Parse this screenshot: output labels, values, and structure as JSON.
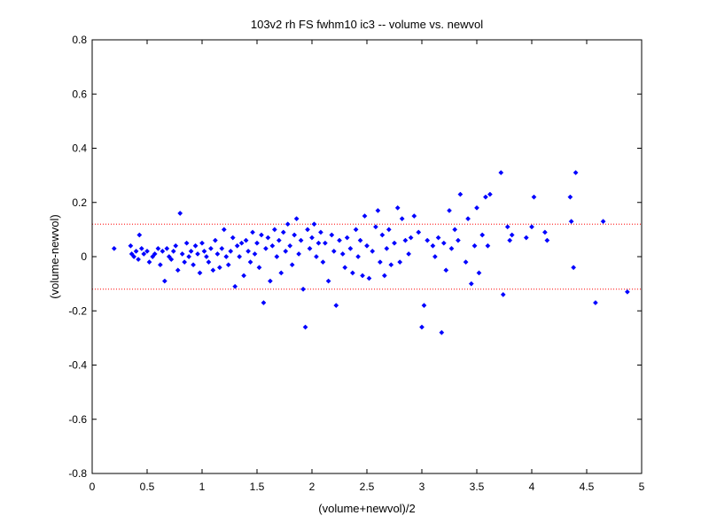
{
  "colors": {
    "background": "#ffffff",
    "axes": "#000000",
    "points": "#0000ff",
    "limits": "#ff0000"
  },
  "chart_data": {
    "type": "scatter",
    "title": "103v2 rh FS fwhm10 ic3 -- volume vs. newvol",
    "xlabel": "(volume+newvol)/2",
    "ylabel": "(volume-newvol)",
    "xlim": [
      0,
      5
    ],
    "ylim": [
      -0.8,
      0.8
    ],
    "xticks": [
      "0",
      "0.5",
      "1",
      "1.5",
      "2",
      "2.5",
      "3",
      "3.5",
      "4",
      "4.5",
      "5"
    ],
    "yticks": [
      "-0.8",
      "-0.6",
      "-0.4",
      "-0.2",
      "0",
      "0.2",
      "0.4",
      "0.6",
      "0.8"
    ],
    "marker": "diamond",
    "grid": false,
    "reference_lines": [
      {
        "y": 0.12,
        "style": "dotted",
        "color": "#ff0000"
      },
      {
        "y": -0.12,
        "style": "dotted",
        "color": "#ff0000"
      }
    ],
    "points": [
      [
        0.2,
        0.03
      ],
      [
        0.35,
        0.04
      ],
      [
        0.36,
        0.01
      ],
      [
        0.38,
        0.0
      ],
      [
        0.4,
        0.02
      ],
      [
        0.42,
        -0.01
      ],
      [
        0.43,
        0.08
      ],
      [
        0.45,
        0.03
      ],
      [
        0.47,
        0.01
      ],
      [
        0.5,
        0.02
      ],
      [
        0.52,
        -0.02
      ],
      [
        0.55,
        0.0
      ],
      [
        0.57,
        0.01
      ],
      [
        0.6,
        0.03
      ],
      [
        0.62,
        -0.03
      ],
      [
        0.64,
        0.02
      ],
      [
        0.66,
        -0.09
      ],
      [
        0.68,
        0.03
      ],
      [
        0.7,
        0.0
      ],
      [
        0.72,
        -0.01
      ],
      [
        0.74,
        0.02
      ],
      [
        0.76,
        0.04
      ],
      [
        0.78,
        -0.05
      ],
      [
        0.8,
        0.16
      ],
      [
        0.82,
        0.01
      ],
      [
        0.84,
        -0.02
      ],
      [
        0.86,
        0.05
      ],
      [
        0.88,
        0.0
      ],
      [
        0.9,
        0.02
      ],
      [
        0.92,
        -0.03
      ],
      [
        0.94,
        0.04
      ],
      [
        0.96,
        0.01
      ],
      [
        0.98,
        -0.06
      ],
      [
        1.0,
        0.05
      ],
      [
        1.02,
        0.02
      ],
      [
        1.04,
        0.0
      ],
      [
        1.06,
        -0.02
      ],
      [
        1.08,
        0.03
      ],
      [
        1.1,
        -0.05
      ],
      [
        1.12,
        0.06
      ],
      [
        1.14,
        0.01
      ],
      [
        1.16,
        -0.04
      ],
      [
        1.18,
        0.03
      ],
      [
        1.2,
        0.1
      ],
      [
        1.22,
        0.0
      ],
      [
        1.24,
        -0.03
      ],
      [
        1.26,
        0.02
      ],
      [
        1.28,
        0.07
      ],
      [
        1.3,
        -0.11
      ],
      [
        1.32,
        0.04
      ],
      [
        1.34,
        0.0
      ],
      [
        1.36,
        0.05
      ],
      [
        1.38,
        -0.07
      ],
      [
        1.4,
        0.06
      ],
      [
        1.42,
        0.02
      ],
      [
        1.44,
        -0.02
      ],
      [
        1.46,
        0.09
      ],
      [
        1.48,
        0.01
      ],
      [
        1.5,
        0.05
      ],
      [
        1.52,
        -0.04
      ],
      [
        1.54,
        0.08
      ],
      [
        1.56,
        -0.17
      ],
      [
        1.58,
        0.03
      ],
      [
        1.6,
        0.07
      ],
      [
        1.62,
        -0.09
      ],
      [
        1.64,
        0.04
      ],
      [
        1.66,
        0.1
      ],
      [
        1.68,
        0.0
      ],
      [
        1.7,
        0.06
      ],
      [
        1.72,
        -0.06
      ],
      [
        1.74,
        0.09
      ],
      [
        1.76,
        0.02
      ],
      [
        1.78,
        0.12
      ],
      [
        1.8,
        0.04
      ],
      [
        1.82,
        -0.03
      ],
      [
        1.84,
        0.08
      ],
      [
        1.86,
        0.14
      ],
      [
        1.88,
        0.01
      ],
      [
        1.9,
        0.06
      ],
      [
        1.92,
        -0.12
      ],
      [
        1.94,
        -0.26
      ],
      [
        1.96,
        0.1
      ],
      [
        1.98,
        0.03
      ],
      [
        2.0,
        0.07
      ],
      [
        2.02,
        0.12
      ],
      [
        2.04,
        0.0
      ],
      [
        2.06,
        0.05
      ],
      [
        2.08,
        0.09
      ],
      [
        2.1,
        -0.02
      ],
      [
        2.12,
        0.05
      ],
      [
        2.15,
        -0.09
      ],
      [
        2.18,
        0.08
      ],
      [
        2.2,
        0.02
      ],
      [
        2.22,
        -0.18
      ],
      [
        2.25,
        0.06
      ],
      [
        2.28,
        0.01
      ],
      [
        2.3,
        -0.04
      ],
      [
        2.32,
        0.07
      ],
      [
        2.35,
        0.03
      ],
      [
        2.37,
        -0.06
      ],
      [
        2.4,
        0.1
      ],
      [
        2.42,
        0.0
      ],
      [
        2.44,
        0.06
      ],
      [
        2.46,
        -0.07
      ],
      [
        2.48,
        0.15
      ],
      [
        2.5,
        0.04
      ],
      [
        2.52,
        -0.08
      ],
      [
        2.55,
        0.02
      ],
      [
        2.58,
        0.11
      ],
      [
        2.6,
        0.17
      ],
      [
        2.62,
        -0.02
      ],
      [
        2.64,
        0.08
      ],
      [
        2.66,
        -0.07
      ],
      [
        2.68,
        0.03
      ],
      [
        2.7,
        0.1
      ],
      [
        2.72,
        -0.03
      ],
      [
        2.75,
        0.05
      ],
      [
        2.78,
        0.18
      ],
      [
        2.8,
        -0.02
      ],
      [
        2.82,
        0.14
      ],
      [
        2.85,
        0.06
      ],
      [
        2.88,
        0.01
      ],
      [
        2.9,
        0.07
      ],
      [
        2.93,
        0.15
      ],
      [
        2.97,
        0.09
      ],
      [
        3.0,
        -0.26
      ],
      [
        3.02,
        -0.18
      ],
      [
        3.05,
        0.06
      ],
      [
        3.1,
        0.04
      ],
      [
        3.12,
        0.0
      ],
      [
        3.15,
        0.07
      ],
      [
        3.18,
        -0.28
      ],
      [
        3.2,
        0.05
      ],
      [
        3.22,
        -0.05
      ],
      [
        3.25,
        0.17
      ],
      [
        3.27,
        0.03
      ],
      [
        3.3,
        0.1
      ],
      [
        3.33,
        0.06
      ],
      [
        3.35,
        0.23
      ],
      [
        3.4,
        -0.02
      ],
      [
        3.42,
        0.14
      ],
      [
        3.45,
        -0.1
      ],
      [
        3.48,
        0.04
      ],
      [
        3.5,
        0.18
      ],
      [
        3.52,
        -0.06
      ],
      [
        3.55,
        0.08
      ],
      [
        3.58,
        0.22
      ],
      [
        3.6,
        0.04
      ],
      [
        3.62,
        0.23
      ],
      [
        3.72,
        0.31
      ],
      [
        3.74,
        -0.14
      ],
      [
        3.78,
        0.11
      ],
      [
        3.8,
        0.06
      ],
      [
        3.82,
        0.08
      ],
      [
        3.95,
        0.07
      ],
      [
        4.0,
        0.11
      ],
      [
        4.02,
        0.22
      ],
      [
        4.12,
        0.09
      ],
      [
        4.14,
        0.06
      ],
      [
        4.35,
        0.22
      ],
      [
        4.36,
        0.13
      ],
      [
        4.38,
        -0.04
      ],
      [
        4.4,
        0.31
      ],
      [
        4.58,
        -0.17
      ],
      [
        4.65,
        0.13
      ],
      [
        4.87,
        -0.13
      ]
    ]
  }
}
